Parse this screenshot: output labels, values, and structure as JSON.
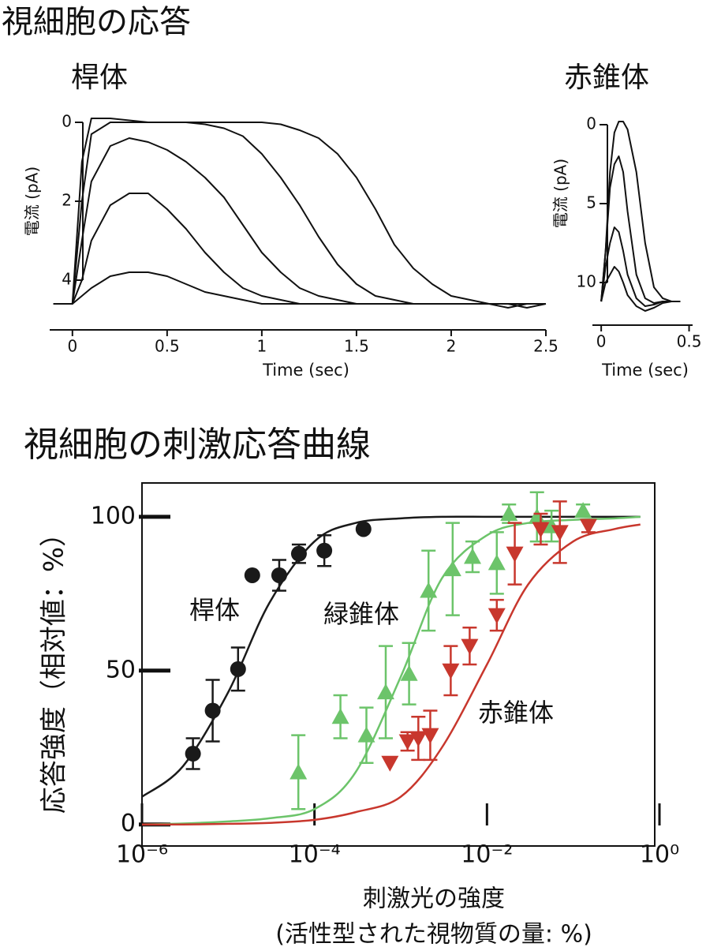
{
  "headings": [
    "視細胞の応答",
    "視細胞の刺激応答曲線"
  ],
  "chart_data": [
    {
      "type": "line",
      "title": "桿体",
      "xlabel": "Time (sec)",
      "ylabel": "電流 (pA)",
      "xlim": [
        -0.12,
        2.5
      ],
      "xticks": [
        0,
        0.5,
        1,
        1.5,
        2,
        2.5
      ],
      "ylim": [
        5.3,
        -0.3
      ],
      "yticks": [
        0,
        2,
        4
      ],
      "x": [
        -0.1,
        0,
        0.05,
        0.1,
        0.2,
        0.3,
        0.4,
        0.5,
        0.6,
        0.7,
        0.8,
        0.9,
        1,
        1.1,
        1.2,
        1.3,
        1.4,
        1.5,
        1.6,
        1.7,
        1.8,
        1.9,
        2,
        2.1,
        2.2,
        2.3,
        2.4,
        2.5
      ],
      "series": [
        {
          "color": "#111111",
          "values": [
            4.6,
            4.6,
            1.0,
            -0.1,
            -0.1,
            -0.05,
            0,
            0,
            0,
            0,
            0,
            0,
            0,
            0.05,
            0.2,
            0.4,
            0.8,
            1.4,
            2.2,
            3.1,
            3.7,
            4.1,
            4.4,
            4.5,
            4.6,
            4.6,
            4.7,
            4.6
          ]
        },
        {
          "color": "#111111",
          "values": [
            4.6,
            4.6,
            2.0,
            0.3,
            0,
            0,
            0,
            0,
            0,
            0.05,
            0.15,
            0.35,
            0.8,
            1.4,
            2.1,
            2.9,
            3.6,
            4.1,
            4.4,
            4.5,
            4.6,
            4.6,
            4.6,
            4.6,
            4.6,
            4.7,
            4.6,
            4.6
          ]
        },
        {
          "color": "#111111",
          "values": [
            4.6,
            4.6,
            3.0,
            1.5,
            0.6,
            0.4,
            0.5,
            0.7,
            1.0,
            1.4,
            1.9,
            2.6,
            3.3,
            3.8,
            4.2,
            4.4,
            4.5,
            4.6,
            4.6,
            4.6,
            4.6,
            4.6,
            4.6,
            4.6,
            4.6,
            4.6,
            4.6,
            4.6
          ]
        },
        {
          "color": "#111111",
          "values": [
            4.6,
            4.6,
            4.0,
            3.0,
            2.1,
            1.8,
            1.8,
            2.2,
            2.7,
            3.3,
            3.8,
            4.2,
            4.4,
            4.5,
            4.6,
            4.6,
            4.6,
            4.6,
            4.6,
            4.6,
            4.6,
            4.6,
            4.6,
            4.6,
            4.6,
            4.6,
            4.6,
            4.6
          ]
        },
        {
          "color": "#111111",
          "values": [
            4.6,
            4.6,
            4.4,
            4.2,
            3.9,
            3.8,
            3.8,
            3.9,
            4.1,
            4.3,
            4.4,
            4.5,
            4.6,
            4.6,
            4.6,
            4.6,
            4.6,
            4.6,
            4.6,
            4.6,
            4.6,
            4.6,
            4.6,
            4.6,
            4.6,
            4.6,
            4.6,
            4.6
          ]
        }
      ]
    },
    {
      "type": "line",
      "title": "赤錐体",
      "xlabel": "Time (sec)",
      "ylabel": "電流 (pA)",
      "xlim": [
        -0.05,
        0.52
      ],
      "xticks": [
        0,
        0.5
      ],
      "ylim": [
        12.8,
        -0.4
      ],
      "yticks": [
        0,
        5,
        10
      ],
      "x": [
        0,
        0.025,
        0.05,
        0.075,
        0.1,
        0.125,
        0.15,
        0.2,
        0.25,
        0.3,
        0.35,
        0.4,
        0.45
      ],
      "series": [
        {
          "color": "#111111",
          "values": [
            11.2,
            8,
            3,
            0.5,
            -0.2,
            -0.2,
            0.3,
            3,
            7.5,
            10.3,
            11.0,
            11.2,
            11.2
          ]
        },
        {
          "color": "#111111",
          "values": [
            11.2,
            8,
            4,
            2.5,
            2.0,
            3.0,
            5.5,
            9.5,
            11.0,
            11.3,
            11.2,
            11.2,
            11.2
          ]
        },
        {
          "color": "#111111",
          "values": [
            11.2,
            9,
            7.5,
            6.5,
            6.8,
            8.0,
            9.5,
            11.0,
            11.5,
            11.4,
            11.2,
            11.2,
            11.2
          ]
        },
        {
          "color": "#111111",
          "values": [
            11.2,
            10,
            9.5,
            9.0,
            9.3,
            10.0,
            10.8,
            11.5,
            11.8,
            11.6,
            11.3,
            11.2,
            11.2
          ]
        }
      ]
    },
    {
      "type": "scatter",
      "xlabel": [
        "刺激光の強度",
        "(活性型された視物質の量: %)"
      ],
      "ylabel": "応答強度（相対値：%）",
      "xscale": "log",
      "xlim": [
        1e-06,
        1
      ],
      "xticks": [
        {
          "value": 1e-06,
          "label": "10⁻⁶"
        },
        {
          "value": 0.0001,
          "label": "10⁻⁴"
        },
        {
          "value": 0.01,
          "label": "10⁻²"
        },
        {
          "value": 1,
          "label": "10⁰"
        }
      ],
      "ylim": [
        -7,
        111
      ],
      "yticks": [
        0,
        50,
        100
      ],
      "series": [
        {
          "name": "桿体",
          "color": "#1a1a1a",
          "marker": "circle",
          "x": [
            3.9e-06,
            6.6e-06,
            1.3e-05,
            1.9e-05,
            3.9e-05,
            6.6e-05,
            0.00013,
            0.00037
          ],
          "values": [
            23,
            37,
            50.5,
            81,
            81,
            88,
            89,
            96
          ],
          "errors": [
            5,
            10,
            7,
            0,
            5,
            3,
            5,
            0
          ],
          "curve": {
            "x": [
              1e-06,
              3e-06,
              1e-05,
              3e-05,
              0.0001,
              0.0003,
              0.001,
              0.003,
              0.01,
              0.03,
              0.1,
              0.3,
              0.6
            ],
            "values": [
              9,
              19,
              43,
              72,
              92,
              98,
              99.5,
              100,
              100,
              100,
              100,
              100,
              100
            ]
          }
        },
        {
          "name": "緑錐体",
          "color": "#6cc46a",
          "marker": "triangle-up",
          "x": [
            6.5e-05,
            0.0002,
            0.0004,
            0.00067,
            0.00125,
            0.0021,
            0.004,
            0.0068,
            0.013,
            0.018,
            0.038,
            0.056,
            0.13
          ],
          "values": [
            17,
            35,
            29,
            43,
            49,
            76,
            83,
            87,
            85,
            101,
            100,
            97,
            102
          ],
          "errors": [
            12,
            7,
            9,
            15,
            10,
            13,
            15,
            5,
            10,
            3,
            8,
            5,
            2
          ],
          "curve": {
            "x": [
              1e-06,
              3e-06,
              1e-05,
              3e-05,
              0.0001,
              0.0003,
              0.001,
              0.003,
              0.01,
              0.03,
              0.1,
              0.3,
              0.6
            ],
            "values": [
              0,
              0.3,
              1,
              2,
              5,
              17,
              48,
              80,
              94,
              98,
              99,
              99.5,
              100
            ]
          }
        },
        {
          "name": "赤錐体",
          "color": "#c8372d",
          "marker": "triangle-down",
          "x": [
            0.00075,
            0.0012,
            0.0016,
            0.0022,
            0.0038,
            0.0063,
            0.013,
            0.021,
            0.042,
            0.07,
            0.15
          ],
          "values": [
            20,
            27,
            28,
            29,
            50,
            58,
            68,
            88,
            96,
            95,
            97
          ],
          "errors": [
            0,
            3,
            7,
            8,
            8,
            6,
            5,
            10,
            5,
            10,
            2
          ],
          "curve": {
            "x": [
              1e-06,
              3e-06,
              1e-05,
              3e-05,
              0.0001,
              0.0003,
              0.001,
              0.003,
              0.01,
              0.03,
              0.1,
              0.3,
              0.6
            ],
            "values": [
              0,
              0,
              0.2,
              0.5,
              1.5,
              4,
              9,
              25,
              52,
              78,
              92,
              96,
              97.5
            ]
          }
        }
      ]
    }
  ]
}
